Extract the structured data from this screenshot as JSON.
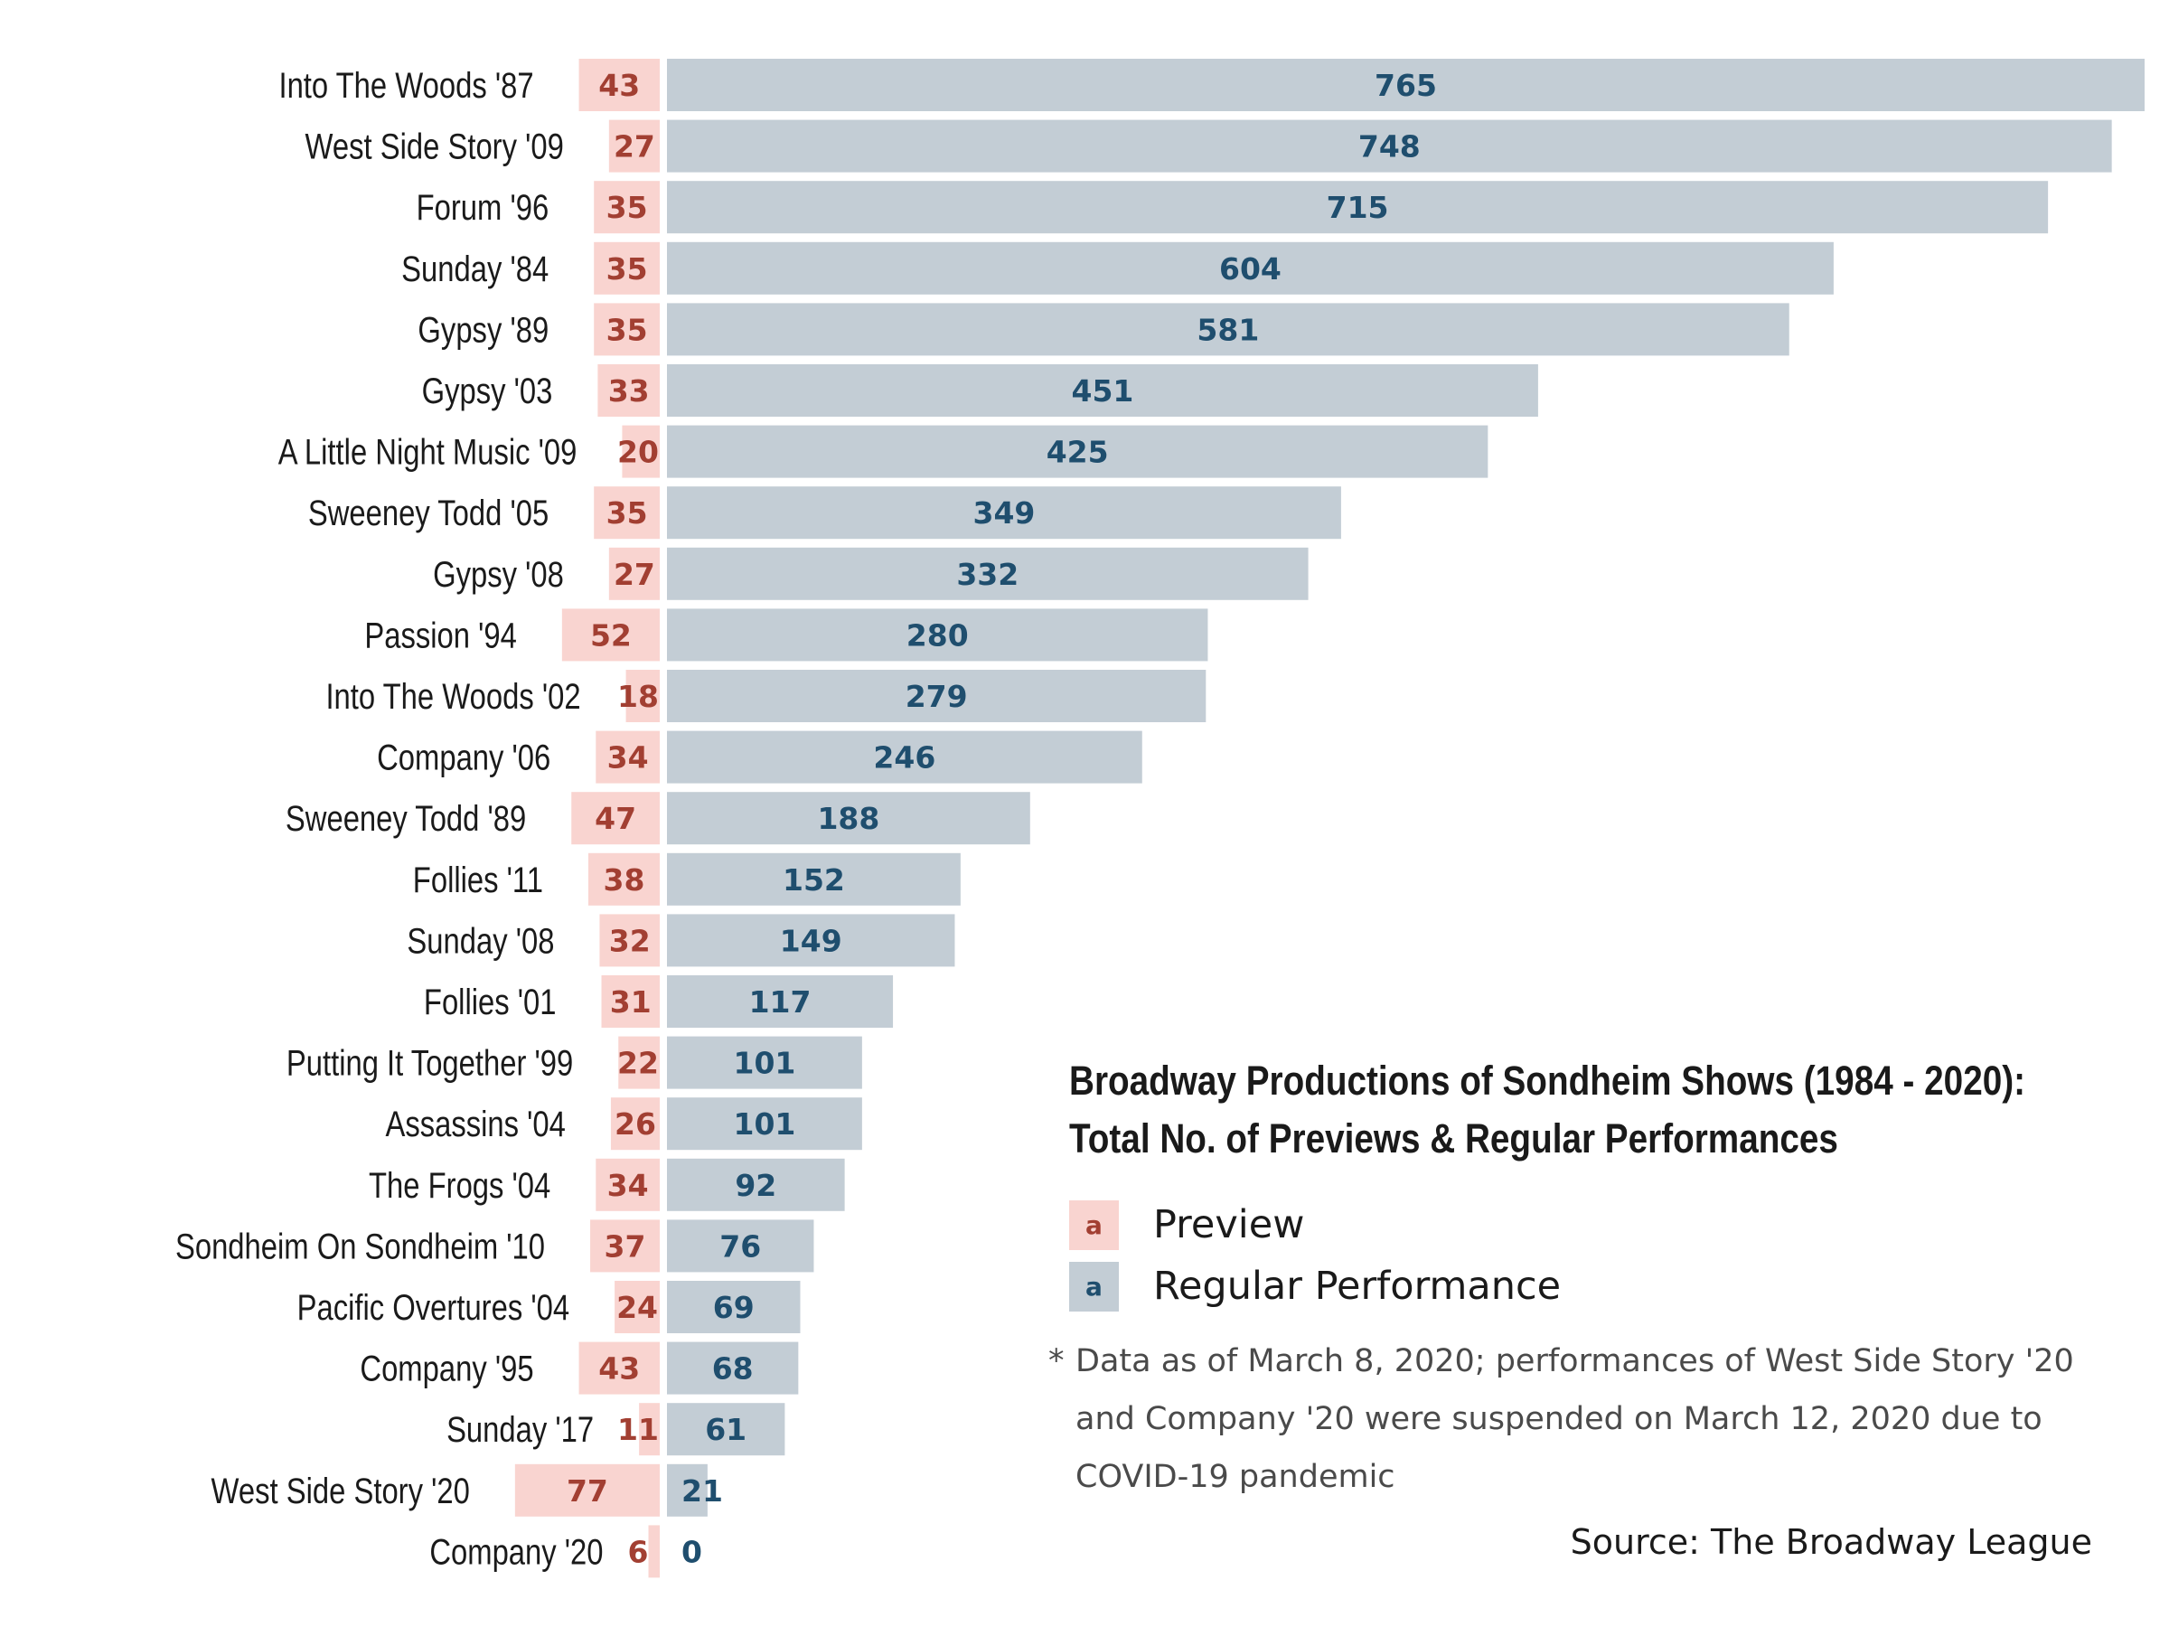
{
  "chart_data": {
    "type": "bar",
    "orientation": "horizontal-diverging",
    "title": "Broadway Productions of Sondheim Shows (1984 - 2020):\nTotal No. of Previews & Regular Performances",
    "categories": [
      "Into The Woods '87",
      "West Side Story '09",
      "Forum '96",
      "Sunday '84",
      "Gypsy '89",
      "Gypsy '03",
      "A Little Night Music '09",
      "Sweeney Todd '05",
      "Gypsy '08",
      "Passion '94",
      "Into The Woods '02",
      "Company '06",
      "Sweeney Todd '89",
      "Follies '11",
      "Sunday '08",
      "Follies '01",
      "Putting It Together '99",
      "Assassins '04",
      "The Frogs '04",
      "Sondheim On Sondheim '10",
      "Pacific Overtures '04",
      "Company '95",
      "Sunday '17",
      "West Side Story '20",
      "Company '20"
    ],
    "series": [
      {
        "name": "Preview",
        "color": "#f9d4d0",
        "label_color": "#a23f32",
        "values": [
          43,
          27,
          35,
          35,
          35,
          33,
          20,
          35,
          27,
          52,
          18,
          34,
          47,
          38,
          32,
          31,
          22,
          26,
          34,
          37,
          24,
          43,
          11,
          77,
          6
        ]
      },
      {
        "name": "Regular Performance",
        "color": "#c3cdd5",
        "label_color": "#1f4e6e",
        "values": [
          765,
          748,
          715,
          604,
          581,
          451,
          425,
          349,
          332,
          280,
          279,
          246,
          188,
          152,
          149,
          117,
          101,
          101,
          92,
          76,
          69,
          68,
          61,
          21,
          0
        ]
      }
    ]
  },
  "legend": {
    "swatch_glyph": "a",
    "items": [
      {
        "label": "Preview",
        "icon": "preview-swatch-icon"
      },
      {
        "label": "Regular Performance",
        "icon": "regular-swatch-icon"
      }
    ]
  },
  "footnote": {
    "star": "*",
    "text": "Data as of March 8, 2020; performances of West Side Story '20 and Company '20 were suspended on March 12, 2020 due to COVID-19 pandemic"
  },
  "source": "Source: The Broadway League"
}
